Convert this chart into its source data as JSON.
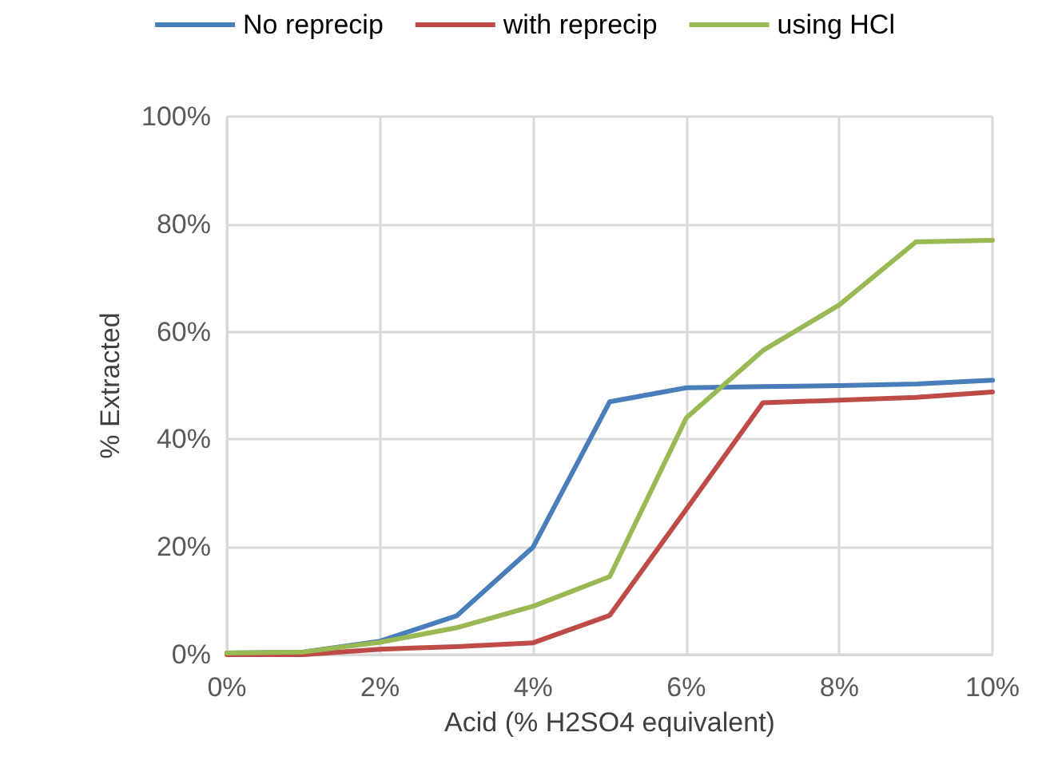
{
  "chart_data": {
    "type": "line",
    "xlabel": "Acid (% H2SO4 equivalent)",
    "ylabel": "% Extracted",
    "x": [
      0,
      1,
      2,
      3,
      4,
      5,
      6,
      7,
      8,
      9,
      10
    ],
    "series": [
      {
        "name": "No reprecip",
        "color": "#4a7ebb",
        "values": [
          0.3,
          0.5,
          2.5,
          7.2,
          20,
          47,
          49.6,
          49.8,
          50,
          50.3,
          51
        ]
      },
      {
        "name": "with reprecip",
        "color": "#be4b48",
        "values": [
          0,
          0,
          1,
          1.5,
          2.2,
          7.3,
          27,
          46.8,
          47.3,
          47.8,
          48.8
        ]
      },
      {
        "name": "using HCl",
        "color": "#98b954",
        "values": [
          0.3,
          0.5,
          2.3,
          5,
          9,
          14.5,
          44,
          56.5,
          65,
          76.7,
          77
        ]
      }
    ],
    "xlim": [
      0,
      10
    ],
    "xticks": [
      {
        "value": 0,
        "label": "0%"
      },
      {
        "value": 2,
        "label": "2%"
      },
      {
        "value": 4,
        "label": "4%"
      },
      {
        "value": 6,
        "label": "6%"
      },
      {
        "value": 8,
        "label": "8%"
      },
      {
        "value": 10,
        "label": "10%"
      }
    ],
    "ylim": [
      0,
      100
    ],
    "yticks": [
      {
        "value": 0,
        "label": "0%"
      },
      {
        "value": 20,
        "label": "20%"
      },
      {
        "value": 40,
        "label": "40%"
      },
      {
        "value": 60,
        "label": "60%"
      },
      {
        "value": 80,
        "label": "80%"
      },
      {
        "value": 100,
        "label": "100%"
      }
    ],
    "grid": true,
    "legend": "top",
    "marker": "none",
    "line_style": "solid"
  }
}
